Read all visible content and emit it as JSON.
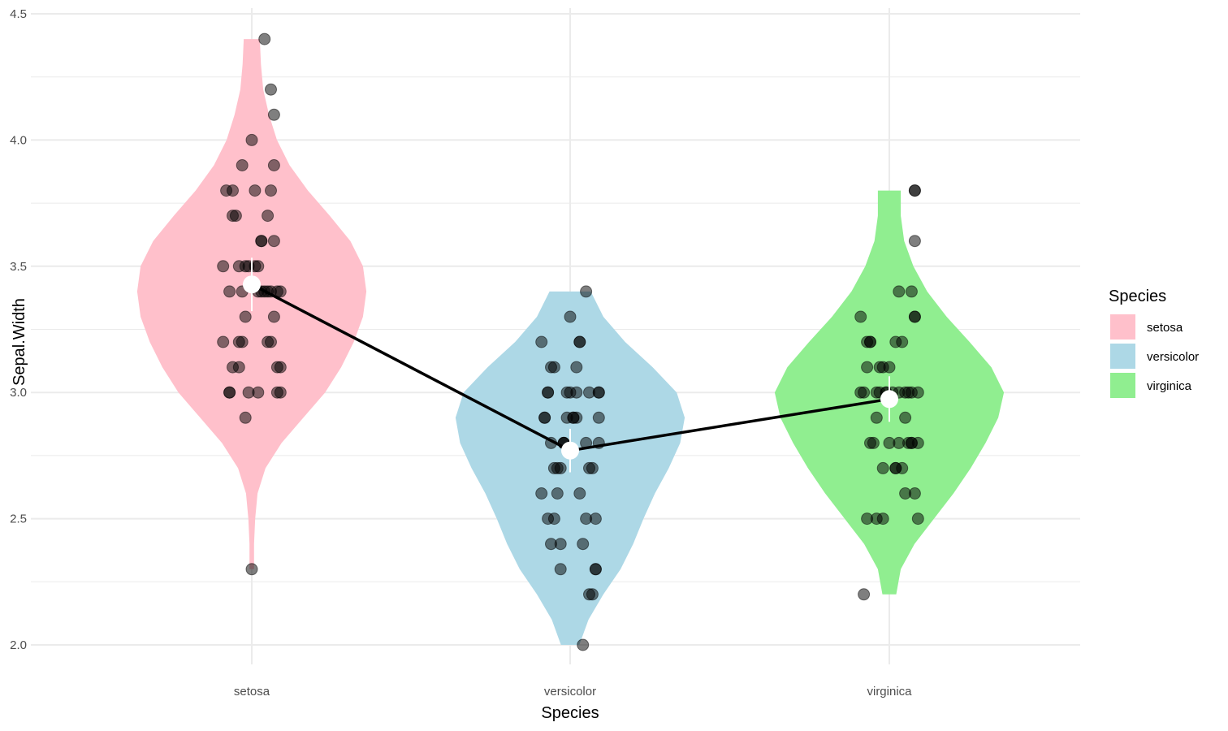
{
  "chart_data": {
    "type": "violin",
    "title": "",
    "xlabel": "Species",
    "ylabel": "Sepal.Width",
    "ylim": [
      1.95,
      4.5
    ],
    "y_ticks": [
      "2.0",
      "2.5",
      "3.0",
      "3.5",
      "4.0",
      "4.5"
    ],
    "y_tick_values": [
      2.0,
      2.5,
      3.0,
      3.5,
      4.0,
      4.5
    ],
    "grid": true,
    "categories": [
      "setosa",
      "versicolor",
      "virginica"
    ],
    "legend": {
      "title": "Species",
      "placement": "right",
      "entries": [
        "setosa",
        "versicolor",
        "virginica"
      ]
    },
    "colors": {
      "setosa": "#ffc0cb",
      "versicolor": "#add8e6",
      "virginica": "#90ee90",
      "points": "#000000",
      "mean_line": "#000000",
      "mean_marker": "#ffffff",
      "grid": "#ebebeb"
    },
    "series": [
      {
        "name": "setosa",
        "min": 2.3,
        "max": 4.4,
        "mean": 3.428,
        "se": 0.054,
        "density_profile": [
          [
            2.3,
            0.02
          ],
          [
            2.4,
            0.02
          ],
          [
            2.5,
            0.03
          ],
          [
            2.6,
            0.05
          ],
          [
            2.7,
            0.12
          ],
          [
            2.8,
            0.26
          ],
          [
            2.9,
            0.45
          ],
          [
            3.0,
            0.64
          ],
          [
            3.1,
            0.78
          ],
          [
            3.2,
            0.89
          ],
          [
            3.3,
            0.97
          ],
          [
            3.4,
            1.0
          ],
          [
            3.5,
            0.97
          ],
          [
            3.6,
            0.86
          ],
          [
            3.7,
            0.68
          ],
          [
            3.8,
            0.49
          ],
          [
            3.9,
            0.33
          ],
          [
            4.0,
            0.22
          ],
          [
            4.1,
            0.15
          ],
          [
            4.2,
            0.1
          ],
          [
            4.3,
            0.08
          ],
          [
            4.4,
            0.07
          ]
        ],
        "points": [
          [
            -0.09,
            3.5
          ],
          [
            0.02,
            3.0
          ],
          [
            0.06,
            3.2
          ],
          [
            -0.04,
            3.1
          ],
          [
            0.03,
            3.6
          ],
          [
            0.07,
            3.9
          ],
          [
            -0.07,
            3.4
          ],
          [
            0.05,
            3.4
          ],
          [
            -0.02,
            2.9
          ],
          [
            0.08,
            3.1
          ],
          [
            -0.06,
            3.7
          ],
          [
            0.04,
            3.4
          ],
          [
            -0.01,
            3.0
          ],
          [
            0.09,
            3.0
          ],
          [
            0.0,
            4.0
          ],
          [
            0.04,
            4.4
          ],
          [
            -0.03,
            3.9
          ],
          [
            0.01,
            3.5
          ],
          [
            0.06,
            3.8
          ],
          [
            -0.08,
            3.8
          ],
          [
            0.02,
            3.4
          ],
          [
            -0.05,
            3.7
          ],
          [
            0.07,
            3.6
          ],
          [
            -0.02,
            3.3
          ],
          [
            0.08,
            3.4
          ],
          [
            -0.07,
            3.0
          ],
          [
            0.03,
            3.4
          ],
          [
            -0.04,
            3.5
          ],
          [
            0.06,
            3.4
          ],
          [
            -0.09,
            3.2
          ],
          [
            0.09,
            3.1
          ],
          [
            -0.03,
            3.4
          ],
          [
            0.07,
            4.1
          ],
          [
            0.06,
            4.2
          ],
          [
            -0.06,
            3.1
          ],
          [
            0.05,
            3.2
          ],
          [
            -0.01,
            3.5
          ],
          [
            0.03,
            3.6
          ],
          [
            -0.07,
            3.0
          ],
          [
            0.09,
            3.4
          ],
          [
            -0.02,
            3.5
          ],
          [
            0.0,
            2.3
          ],
          [
            -0.03,
            3.2
          ],
          [
            0.02,
            3.5
          ],
          [
            -0.06,
            3.8
          ],
          [
            0.08,
            3.0
          ],
          [
            0.01,
            3.8
          ],
          [
            -0.04,
            3.2
          ],
          [
            0.05,
            3.7
          ],
          [
            0.07,
            3.3
          ]
        ]
      },
      {
        "name": "versicolor",
        "min": 2.0,
        "max": 3.4,
        "mean": 2.77,
        "se": 0.044,
        "density_profile": [
          [
            2.0,
            0.08
          ],
          [
            2.1,
            0.16
          ],
          [
            2.2,
            0.29
          ],
          [
            2.3,
            0.44
          ],
          [
            2.4,
            0.55
          ],
          [
            2.5,
            0.64
          ],
          [
            2.6,
            0.74
          ],
          [
            2.7,
            0.86
          ],
          [
            2.8,
            0.96
          ],
          [
            2.9,
            1.0
          ],
          [
            3.0,
            0.93
          ],
          [
            3.1,
            0.72
          ],
          [
            3.2,
            0.48
          ],
          [
            3.3,
            0.29
          ],
          [
            3.4,
            0.18
          ]
        ],
        "points": [
          [
            -0.09,
            3.2
          ],
          [
            0.03,
            3.2
          ],
          [
            -0.05,
            3.1
          ],
          [
            0.08,
            2.3
          ],
          [
            -0.02,
            2.8
          ],
          [
            0.05,
            2.8
          ],
          [
            0.0,
            3.3
          ],
          [
            -0.06,
            2.4
          ],
          [
            0.09,
            2.9
          ],
          [
            -0.03,
            2.7
          ],
          [
            0.04,
            2.0
          ],
          [
            -0.07,
            3.0
          ],
          [
            0.06,
            2.2
          ],
          [
            -0.01,
            2.9
          ],
          [
            -0.08,
            2.9
          ],
          [
            0.02,
            3.1
          ],
          [
            0.09,
            3.0
          ],
          [
            -0.04,
            2.7
          ],
          [
            0.07,
            2.2
          ],
          [
            -0.05,
            2.5
          ],
          [
            0.03,
            3.2
          ],
          [
            -0.06,
            2.8
          ],
          [
            0.08,
            2.5
          ],
          [
            -0.02,
            2.8
          ],
          [
            0.01,
            2.9
          ],
          [
            0.06,
            3.0
          ],
          [
            0.09,
            2.8
          ],
          [
            -0.07,
            3.0
          ],
          [
            0.02,
            2.9
          ],
          [
            -0.09,
            2.6
          ],
          [
            0.04,
            2.4
          ],
          [
            -0.03,
            2.4
          ],
          [
            0.07,
            2.7
          ],
          [
            -0.05,
            2.7
          ],
          [
            0.0,
            3.0
          ],
          [
            0.05,
            3.4
          ],
          [
            -0.06,
            3.1
          ],
          [
            0.08,
            2.3
          ],
          [
            -0.01,
            3.0
          ],
          [
            -0.07,
            2.5
          ],
          [
            0.03,
            2.6
          ],
          [
            0.09,
            3.0
          ],
          [
            -0.04,
            2.6
          ],
          [
            -0.03,
            2.3
          ],
          [
            0.06,
            2.7
          ],
          [
            0.02,
            3.0
          ],
          [
            -0.08,
            2.9
          ],
          [
            0.01,
            2.9
          ],
          [
            0.05,
            2.5
          ],
          [
            -0.02,
            2.8
          ]
        ]
      },
      {
        "name": "virginica",
        "min": 2.2,
        "max": 3.8,
        "mean": 2.974,
        "se": 0.046,
        "density_profile": [
          [
            2.2,
            0.06
          ],
          [
            2.3,
            0.1
          ],
          [
            2.4,
            0.22
          ],
          [
            2.5,
            0.39
          ],
          [
            2.6,
            0.56
          ],
          [
            2.7,
            0.71
          ],
          [
            2.8,
            0.84
          ],
          [
            2.9,
            0.95
          ],
          [
            3.0,
            1.0
          ],
          [
            3.1,
            0.89
          ],
          [
            3.2,
            0.7
          ],
          [
            3.3,
            0.5
          ],
          [
            3.4,
            0.33
          ],
          [
            3.5,
            0.21
          ],
          [
            3.6,
            0.13
          ],
          [
            3.7,
            0.1
          ],
          [
            3.8,
            0.1
          ]
        ],
        "points": [
          [
            -0.09,
            3.3
          ],
          [
            0.02,
            2.7
          ],
          [
            0.06,
            3.0
          ],
          [
            -0.04,
            2.9
          ],
          [
            0.03,
            3.0
          ],
          [
            0.07,
            3.0
          ],
          [
            -0.07,
            2.5
          ],
          [
            0.05,
            2.9
          ],
          [
            -0.02,
            2.5
          ],
          [
            0.08,
            3.6
          ],
          [
            -0.06,
            3.2
          ],
          [
            0.04,
            2.7
          ],
          [
            -0.01,
            3.0
          ],
          [
            0.09,
            2.5
          ],
          [
            0.0,
            2.8
          ],
          [
            0.04,
            3.2
          ],
          [
            -0.03,
            3.0
          ],
          [
            0.08,
            3.8
          ],
          [
            0.08,
            2.6
          ],
          [
            -0.08,
            2.2
          ],
          [
            0.02,
            3.2
          ],
          [
            -0.05,
            2.8
          ],
          [
            0.07,
            2.8
          ],
          [
            -0.02,
            2.7
          ],
          [
            0.08,
            3.3
          ],
          [
            -0.07,
            3.2
          ],
          [
            0.03,
            2.8
          ],
          [
            -0.04,
            3.0
          ],
          [
            0.06,
            2.8
          ],
          [
            -0.09,
            3.0
          ],
          [
            0.09,
            2.8
          ],
          [
            0.08,
            3.8
          ],
          [
            0.07,
            2.8
          ],
          [
            -0.06,
            2.8
          ],
          [
            0.05,
            2.6
          ],
          [
            -0.01,
            3.0
          ],
          [
            0.03,
            3.4
          ],
          [
            -0.07,
            3.1
          ],
          [
            0.09,
            3.0
          ],
          [
            -0.02,
            3.1
          ],
          [
            0.0,
            3.1
          ],
          [
            -0.03,
            3.1
          ],
          [
            0.02,
            2.7
          ],
          [
            -0.06,
            3.2
          ],
          [
            0.08,
            3.3
          ],
          [
            0.01,
            3.0
          ],
          [
            -0.04,
            2.5
          ],
          [
            0.05,
            3.0
          ],
          [
            0.07,
            3.4
          ],
          [
            -0.08,
            3.0
          ]
        ]
      }
    ]
  }
}
